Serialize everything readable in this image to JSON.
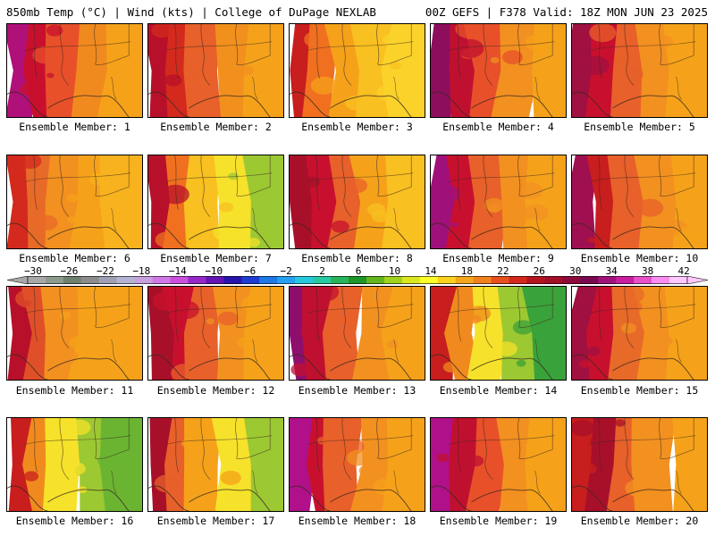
{
  "header": {
    "left": "850mb Temp (°C) | Wind (kts) | College of DuPage NEXLAB",
    "right": "00Z GEFS | F378 Valid: 18Z MON JUN 23 2025"
  },
  "panels": [
    {
      "caption": "Ensemble Member: 1",
      "colors": [
        "#b0107a",
        "#c8102e",
        "#e8502a",
        "#f08a1e",
        "#f5a21a"
      ]
    },
    {
      "caption": "Ensemble Member: 2",
      "colors": [
        "#b8102a",
        "#d42a1e",
        "#e8602a",
        "#f2901e",
        "#f5a21a"
      ]
    },
    {
      "caption": "Ensemble Member: 3",
      "colors": [
        "#c81e1e",
        "#f07020",
        "#f5a21a",
        "#f8c020",
        "#fbd22a"
      ]
    },
    {
      "caption": "Ensemble Member: 4",
      "colors": [
        "#8e0e5e",
        "#c01030",
        "#e8502a",
        "#f29020",
        "#f5a21a"
      ]
    },
    {
      "caption": "Ensemble Member: 5",
      "colors": [
        "#a01040",
        "#c8102e",
        "#e8602a",
        "#f29020",
        "#f5a21a"
      ]
    },
    {
      "caption": "Ensemble Member: 6",
      "colors": [
        "#d42a1e",
        "#e86a28",
        "#f29020",
        "#f5a21a",
        "#f7b21e"
      ]
    },
    {
      "caption": "Ensemble Member: 7",
      "colors": [
        "#b8102a",
        "#f07020",
        "#f8c020",
        "#f6e22a",
        "#9cc832"
      ]
    },
    {
      "caption": "Ensemble Member: 8",
      "colors": [
        "#a8102a",
        "#c8102e",
        "#e8602a",
        "#f5a21a",
        "#f8c020"
      ]
    },
    {
      "caption": "Ensemble Member: 9",
      "colors": [
        "#a0107a",
        "#c8102e",
        "#e8602a",
        "#f29020",
        "#f5a21a"
      ]
    },
    {
      "caption": "Ensemble Member: 10",
      "colors": [
        "#a01050",
        "#c81e1e",
        "#e8602a",
        "#f29020",
        "#f5a21a"
      ]
    },
    {
      "caption": "Ensemble Member: 11",
      "colors": [
        "#b8102a",
        "#e05028",
        "#f29020",
        "#f5a21a",
        "#f5a21a"
      ]
    },
    {
      "caption": "Ensemble Member: 12",
      "colors": [
        "#a8102a",
        "#c8102e",
        "#e8602a",
        "#f29020",
        "#f5a21a"
      ]
    },
    {
      "caption": "Ensemble Member: 13",
      "colors": [
        "#8e0e6e",
        "#c01030",
        "#e8602a",
        "#f29020",
        "#f5a21a"
      ]
    },
    {
      "caption": "Ensemble Member: 14",
      "colors": [
        "#c81e1e",
        "#f08a1e",
        "#f6e22a",
        "#9cc832",
        "#3aa23a"
      ]
    },
    {
      "caption": "Ensemble Member: 15",
      "colors": [
        "#a01040",
        "#c8102e",
        "#e86a28",
        "#f29020",
        "#f5a21a"
      ]
    },
    {
      "caption": "Ensemble Member: 16",
      "colors": [
        "#c81e1e",
        "#f08a1e",
        "#f6e22a",
        "#9cc832",
        "#6ab432"
      ]
    },
    {
      "caption": "Ensemble Member: 17",
      "colors": [
        "#a8102a",
        "#e8602a",
        "#f5a21a",
        "#f6e22a",
        "#9cc832"
      ]
    },
    {
      "caption": "Ensemble Member: 18",
      "colors": [
        "#b0108a",
        "#c8102e",
        "#e8602a",
        "#f29020",
        "#f5a21a"
      ]
    },
    {
      "caption": "Ensemble Member: 19",
      "colors": [
        "#b0108a",
        "#c01030",
        "#e8502a",
        "#f29020",
        "#f5a21a"
      ]
    },
    {
      "caption": "Ensemble Member: 20",
      "colors": [
        "#c81e1e",
        "#a8102a",
        "#e8602a",
        "#f29020",
        "#f5a21a"
      ]
    }
  ],
  "colorbar": {
    "ticks": [
      "−30",
      "−26",
      "−22",
      "−18",
      "−14",
      "−10",
      "−6",
      "−2",
      "2",
      "6",
      "10",
      "14",
      "18",
      "22",
      "26",
      "30",
      "34",
      "38",
      "42"
    ],
    "colors": [
      "#a8a8a8",
      "#8c9c8c",
      "#6e806e",
      "#8c8c8c",
      "#a0a0b4",
      "#b4b4d2",
      "#c8a0dc",
      "#d278e6",
      "#c850dc",
      "#9628c8",
      "#6414b4",
      "#2814aa",
      "#1e3cd2",
      "#1e78e6",
      "#28a0f0",
      "#28c8dc",
      "#28c8a0",
      "#28b45a",
      "#1e9628",
      "#64b41e",
      "#a0d21e",
      "#dce61e",
      "#ffff28",
      "#fad21e",
      "#f5a51e",
      "#f0821e",
      "#e6501e",
      "#d2281e",
      "#b4141e",
      "#a01028",
      "#8c0a3c",
      "#780a50",
      "#a0147a",
      "#c81ea0",
      "#e650c8",
      "#fa8cf0",
      "#ffc8ff"
    ]
  }
}
